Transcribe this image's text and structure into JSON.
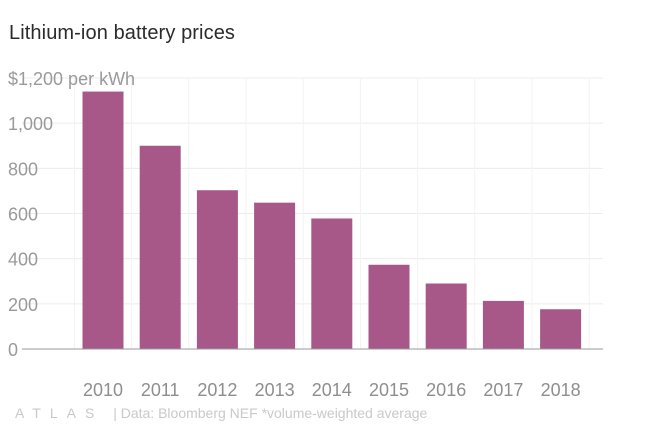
{
  "chart_data": {
    "type": "bar",
    "title": "Lithium-ion battery prices",
    "unit_label": "$1,200 per kWh",
    "categories": [
      "2010",
      "2011",
      "2012",
      "2013",
      "2014",
      "2015",
      "2016",
      "2017",
      "2018"
    ],
    "values": [
      1140,
      900,
      703,
      648,
      578,
      373,
      290,
      213,
      176
    ],
    "y_tick_labels": [
      "0",
      "200",
      "400",
      "600",
      "800",
      "1,000"
    ],
    "ylim": [
      0,
      1200
    ],
    "grid": true,
    "colors": {
      "bar": "#a85789",
      "grid": "#ececec",
      "axis": "#999999",
      "tick_text": "#9a9a9a"
    }
  },
  "footer": {
    "logo": "ATLAS",
    "source": "| Data: Bloomberg NEF *volume-weighted average"
  }
}
